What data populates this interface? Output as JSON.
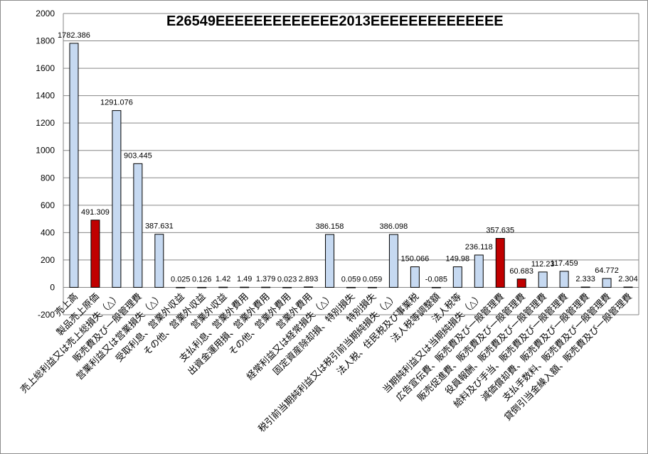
{
  "chart_data": {
    "type": "bar",
    "title": "E26549EEEEEEEEEEEEE2013EEEEEEEEEEEEEE",
    "xlabel": "",
    "ylabel": "",
    "ylim": [
      -200,
      2000
    ],
    "yticks": [
      -200,
      0,
      200,
      400,
      600,
      800,
      1000,
      1200,
      1400,
      1600,
      1800,
      2000
    ],
    "ytick_labels": [
      "-200",
      "0",
      "200",
      "400",
      "600",
      "800",
      "1000",
      "1200",
      "1400",
      "1600",
      "1800",
      "2000"
    ],
    "grid": true,
    "legend": "none",
    "colors": {
      "default": "#c6d9f1",
      "highlight": "#c00000",
      "edge": "#000000",
      "grid": "#868686"
    },
    "categories": [
      "売上高",
      "製品売上原価",
      "売上総利益又は売上総損失（△）",
      "販売費及び一般管理費",
      "営業利益又は営業損失（△）",
      "受取利息、営業外収益",
      "その他、営業外収益",
      "営業外収益",
      "支払利息、営業外費用",
      "出資金運用損、営業外費用",
      "その他、営業外費用",
      "営業外費用",
      "経常利益又は経常損失（△）",
      "固定資産除却損、特別損失",
      "特別損失",
      "税引前当期純利益又は税引前当期純損失（△）",
      "法人税、住民税及び事業税",
      "法人税等調整額",
      "法人税等",
      "当期純利益又は当期純損失（△）",
      "広告宣伝費、販売費及び一般管理費",
      "販売促進費、販売費及び一般管理費",
      "役員報酬、販売費及び一般管理費",
      "給料及び手当、販売費及び一般管理費",
      "減価償却費、販売費及び一般管理費",
      "支払手数料、販売費及び一般管理費",
      "貸倒引当金繰入額、販売費及び一般管理費"
    ],
    "values": [
      1782.386,
      491.309,
      1291.076,
      903.445,
      387.631,
      0.025,
      0.126,
      1.42,
      1.49,
      1.379,
      0.023,
      2.893,
      386.158,
      0.059,
      0.059,
      386.098,
      150.066,
      -0.085,
      149.98,
      236.118,
      357.635,
      60.683,
      112.23,
      117.459,
      2.333,
      64.772,
      2.304
    ],
    "data_labels": [
      "1782.386",
      "491.309",
      "1291.076",
      "903.445",
      "387.631",
      "0.025",
      "0.126",
      "1.42",
      "1.49",
      "1.379",
      "0.023",
      "2.893",
      "386.158",
      "0.059",
      "0.059",
      "386.098",
      "150.066",
      "-0.085",
      "149.98",
      "236.118",
      "357.635",
      "60.683",
      "112.23",
      "117.459",
      "2.333",
      "64.772",
      "2.304"
    ],
    "highlight_indices": [
      1,
      20,
      21
    ]
  }
}
